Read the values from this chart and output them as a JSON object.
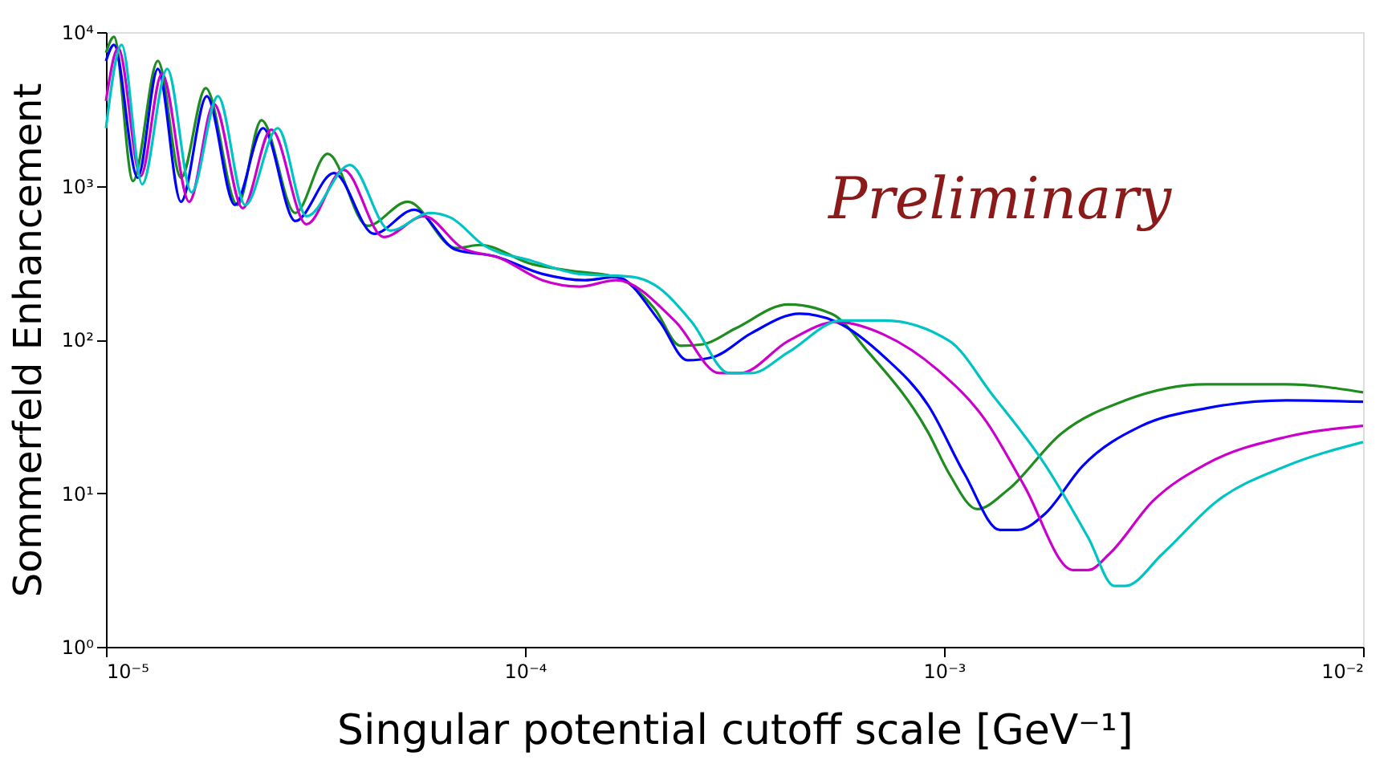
{
  "chart_data": {
    "type": "line",
    "xlabel": "Singular potential cutoff scale [GeV⁻¹]",
    "ylabel": "Sommerfeld Enhancement",
    "annotations": [
      "Preliminary"
    ],
    "log": "xy",
    "grid": false,
    "legend": false,
    "xlim": [
      1e-05,
      0.01
    ],
    "ylim": [
      1,
      10000
    ],
    "xticks": [
      {
        "value": 1e-05,
        "label": "10⁻⁵"
      },
      {
        "value": 0.0001,
        "label": "10⁻⁴"
      },
      {
        "value": 0.001,
        "label": "10⁻³"
      },
      {
        "value": 0.01,
        "label": "10⁻²"
      }
    ],
    "yticks": [
      {
        "value": 1,
        "label": "10⁰"
      },
      {
        "value": 10,
        "label": "10¹"
      },
      {
        "value": 100,
        "label": "10²"
      },
      {
        "value": 1000,
        "label": "10³"
      },
      {
        "value": 10000,
        "label": "10⁴"
      }
    ],
    "series": [
      {
        "color": "#1e8c1e",
        "x": [
          1e-05,
          1.045e-05,
          1.16e-05,
          1.33e-05,
          1.51e-05,
          1.73e-05,
          2.06e-05,
          2.35e-05,
          2.83e-05,
          3.38e-05,
          4.21e-05,
          5.25e-05,
          6.84e-05,
          7.81e-05,
          0.000104,
          0.000127,
          0.000165,
          0.000204,
          0.000235,
          0.000266,
          0.000318,
          0.000425,
          0.000539,
          0.00066,
          0.000916,
          0.00103,
          0.0012,
          0.00142,
          0.0019,
          0.00271,
          0.00421,
          0.00655,
          0.01
        ],
        "values": [
          7330,
          9310,
          1074,
          6490,
          1128,
          4320,
          750,
          2670,
          665,
          1616,
          549,
          787,
          393,
          412,
          309,
          281,
          255,
          158,
          90.9,
          93.0,
          118,
          169,
          147,
          82.6,
          24.9,
          13.3,
          7.87,
          10.5,
          24.3,
          40.2,
          51.1,
          51.1,
          45.3
        ]
      },
      {
        "color": "#0000ff",
        "x": [
          1e-05,
          1.045e-05,
          1.19e-05,
          1.33e-05,
          1.51e-05,
          1.74e-05,
          2.03e-05,
          2.37e-05,
          2.83e-05,
          3.5e-05,
          4.36e-05,
          5.44e-05,
          6.84e-05,
          8.46e-05,
          0.00011,
          0.000139,
          0.000165,
          0.00021,
          0.000244,
          0.000281,
          0.000347,
          0.000452,
          0.000554,
          0.000721,
          0.000916,
          0.00112,
          0.00136,
          0.0015,
          0.00174,
          0.00214,
          0.00296,
          0.00421,
          0.00655,
          0.01
        ],
        "values": [
          6490,
          8260,
          1128,
          5760,
          787,
          3830,
          750,
          2370,
          590,
          1211,
          487,
          698,
          383,
          348,
          267,
          243,
          255,
          130,
          73.2,
          76.8,
          110,
          147,
          130,
          76.8,
          37.4,
          13.3,
          5.76,
          5.76,
          7.32,
          15.0,
          27.4,
          35.6,
          40.2,
          39.3
        ]
      },
      {
        "color": "#cc00cc",
        "x": [
          1e-05,
          1.07e-05,
          1.21e-05,
          1.36e-05,
          1.58e-05,
          1.81e-05,
          2.12e-05,
          2.48e-05,
          3.01e-05,
          3.69e-05,
          4.6e-05,
          5.74e-05,
          7.09e-05,
          8.68e-05,
          0.00011,
          0.000135,
          0.000165,
          0.000229,
          0.000291,
          0.000326,
          0.000425,
          0.000554,
          0.000721,
          0.000965,
          0.00126,
          0.00155,
          0.00203,
          0.00221,
          0.00248,
          0.00315,
          0.00421,
          0.00655,
          0.01
        ],
        "values": [
          3565,
          7870,
          1155,
          5360,
          787,
          3400,
          715,
          2317,
          562,
          1271,
          464,
          634,
          393,
          340,
          243,
          221,
          243,
          130,
          60.4,
          60.4,
          97.7,
          130,
          107,
          63.4,
          29.4,
          11.3,
          3.16,
          3.16,
          4.02,
          8.87,
          15.4,
          23.2,
          27.4
        ]
      },
      {
        "color": "#00c4c4",
        "x": [
          1e-05,
          1.09e-05,
          1.22e-05,
          1.4e-05,
          1.6e-05,
          1.85e-05,
          2.15e-05,
          2.57e-05,
          3.01e-05,
          3.82e-05,
          4.77e-05,
          5.94e-05,
          6.66e-05,
          7.95e-05,
          0.000104,
          0.000135,
          0.000181,
          0.000204,
          0.00025,
          0.000307,
          0.000347,
          0.000425,
          0.000569,
          0.000721,
          0.00103,
          0.0013,
          0.00174,
          0.00221,
          0.00255,
          0.00271,
          0.00332,
          0.00448,
          0.00655,
          0.01
        ],
        "values": [
          2370,
          8260,
          1024,
          5760,
          908,
          3830,
          750,
          2370,
          634,
          1365,
          511,
          665,
          619,
          412,
          324,
          267,
          255,
          226,
          130,
          60.4,
          60.4,
          82.6,
          133,
          133,
          97.7,
          44.2,
          15.4,
          5.11,
          2.49,
          2.49,
          4.02,
          8.87,
          15.0,
          21.5
        ]
      }
    ]
  }
}
